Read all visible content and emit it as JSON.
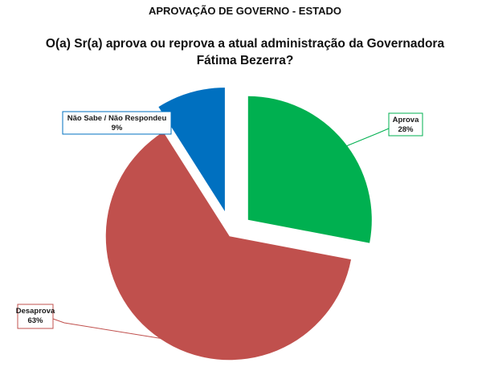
{
  "header": {
    "title": "APROVAÇÃO DE GOVERNO - ESTADO"
  },
  "question": {
    "text": "O(a) Sr(a) aprova ou reprova a atual administração da Governadora Fátima Bezerra?"
  },
  "chart_data": {
    "type": "pie",
    "exploded": true,
    "slices": [
      {
        "label": "Aprova",
        "value": 28,
        "display": "28%",
        "color": "#00B050"
      },
      {
        "label": "Desaprova",
        "value": 63,
        "display": "63%",
        "color": "#C0504D"
      },
      {
        "label": "Não Sabe / Não Respondeu",
        "value": 9,
        "display": "9%",
        "color": "#0070C0"
      }
    ]
  }
}
